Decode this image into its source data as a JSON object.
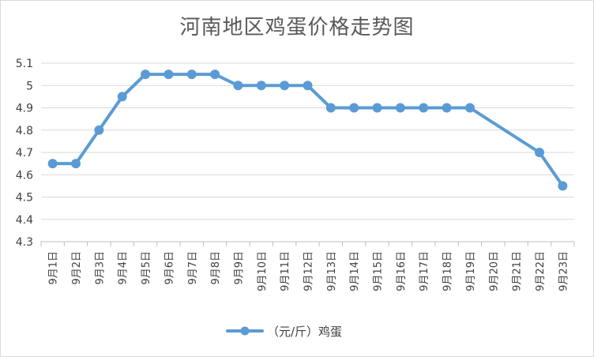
{
  "chart_data": {
    "type": "line",
    "title": "河南地区鸡蛋价格走势图",
    "xlabel": "",
    "ylabel": "",
    "categories": [
      "9月1日",
      "9月2日",
      "9月3日",
      "9月4日",
      "9月5日",
      "9月6日",
      "9月7日",
      "9月8日",
      "9月9日",
      "9月10日",
      "9月11日",
      "9月12日",
      "9月13日",
      "9月14日",
      "9月15日",
      "9月16日",
      "9月17日",
      "9月18日",
      "9月19日",
      "9月20日",
      "9月21日",
      "9月22日",
      "9月23日"
    ],
    "series": [
      {
        "name": "（元/斤）鸡蛋",
        "values": [
          4.65,
          4.65,
          4.8,
          4.95,
          5.05,
          5.05,
          5.05,
          5.05,
          5.0,
          5.0,
          5.0,
          5.0,
          4.9,
          4.9,
          4.9,
          4.9,
          4.9,
          4.9,
          4.9,
          null,
          null,
          4.7,
          4.55
        ],
        "color": "#5b9bd5"
      }
    ],
    "yticks": [
      "4.3",
      "4.4",
      "4.5",
      "4.6",
      "4.7",
      "4.8",
      "4.9",
      "5",
      "5.1"
    ],
    "ylim": [
      4.3,
      5.1
    ],
    "grid": true,
    "legend_position": "bottom",
    "gap_connected": true
  }
}
